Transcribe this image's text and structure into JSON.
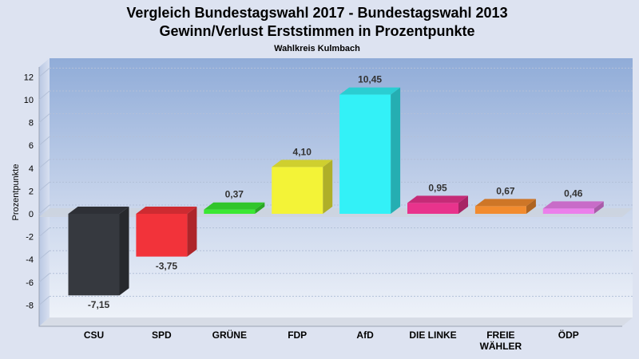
{
  "chart_data": {
    "type": "bar",
    "title": "Vergleich Bundestagswahl 2017 - Bundestagswahl 2013",
    "subtitle": "Gewinn/Verlust Erststimmen in Prozentpunkte",
    "subsubtitle": "Wahlkreis Kulmbach",
    "ylabel": "Prozentpunkte",
    "xlabel": "",
    "ylim": [
      -10,
      14
    ],
    "yticks": [
      12,
      10,
      8,
      6,
      4,
      2,
      0,
      -2,
      -4,
      -6,
      -8
    ],
    "grid": true,
    "categories": [
      "CSU",
      "SPD",
      "GRÜNE",
      "FDP",
      "AfD",
      "DIE LINKE",
      "FREIE WÄHLER",
      "ÖDP"
    ],
    "category_lines": [
      [
        "CSU"
      ],
      [
        "SPD"
      ],
      [
        "GRÜNE"
      ],
      [
        "FDP"
      ],
      [
        "AfD"
      ],
      [
        "DIE LINKE"
      ],
      [
        "FREIE",
        "WÄHLER"
      ],
      [
        "ÖDP"
      ]
    ],
    "values": [
      -7.15,
      -3.75,
      0.37,
      4.1,
      10.45,
      0.95,
      0.67,
      0.46
    ],
    "value_labels": [
      "-7,15",
      "-3,75",
      "0,37",
      "4,10",
      "10,45",
      "0,95",
      "0,67",
      "0,46"
    ],
    "colors": [
      "#36393f",
      "#f2333a",
      "#3ae832",
      "#f3f337",
      "#33f1f7",
      "#e8338c",
      "#f28b2e",
      "#eb7feb"
    ]
  }
}
